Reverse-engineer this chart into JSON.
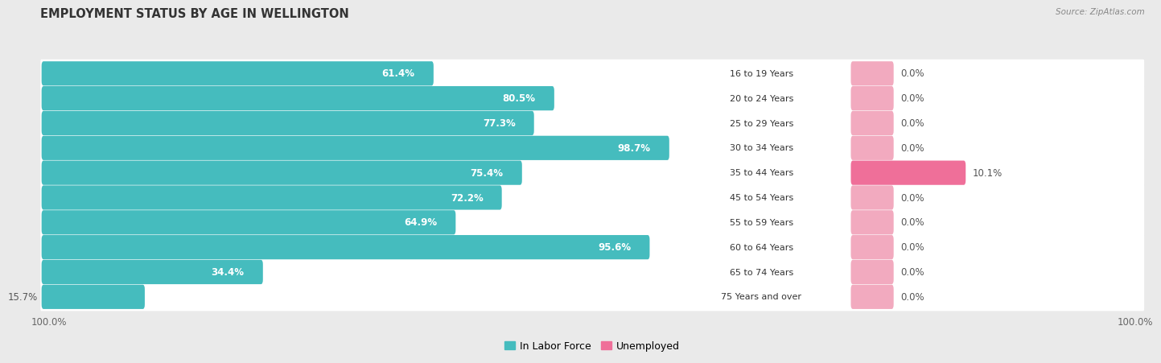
{
  "title": "EMPLOYMENT STATUS BY AGE IN WELLINGTON",
  "source": "Source: ZipAtlas.com",
  "age_groups": [
    "16 to 19 Years",
    "20 to 24 Years",
    "25 to 29 Years",
    "30 to 34 Years",
    "35 to 44 Years",
    "45 to 54 Years",
    "55 to 59 Years",
    "60 to 64 Years",
    "65 to 74 Years",
    "75 Years and over"
  ],
  "labor_force": [
    61.4,
    80.5,
    77.3,
    98.7,
    75.4,
    72.2,
    64.9,
    95.6,
    34.4,
    15.7
  ],
  "unemployed": [
    0.0,
    0.0,
    0.0,
    0.0,
    10.1,
    0.0,
    0.0,
    0.0,
    0.0,
    0.0
  ],
  "labor_force_color": "#45BCBE",
  "unemployed_color_small": "#F2AABF",
  "unemployed_color_large": "#EF6F99",
  "background_color": "#EAEAEA",
  "row_bg_color": "#FFFFFF",
  "row_bg_color_alt": "#F5F5F5",
  "label_fontsize": 8.5,
  "title_fontsize": 10.5,
  "legend_fontsize": 9,
  "source_fontsize": 7.5
}
